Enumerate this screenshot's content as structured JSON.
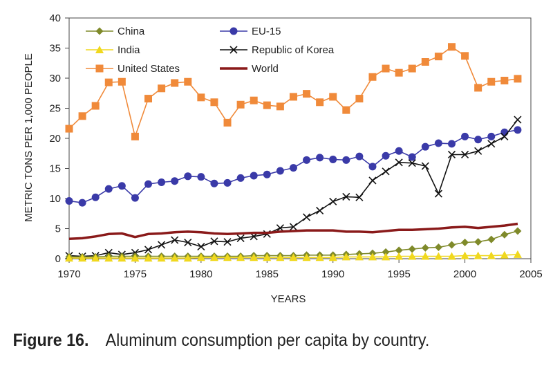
{
  "chart_data": {
    "type": "line",
    "xlabel": "YEARS",
    "ylabel": "METRIC TONS PER 1,000 PEOPLE",
    "xlim": [
      1970,
      2005
    ],
    "ylim": [
      0,
      40
    ],
    "xticks": [
      "1970",
      "1975",
      "1980",
      "1985",
      "1990",
      "1995",
      "2000",
      "2005"
    ],
    "yticks": [
      "0",
      "5",
      "10",
      "15",
      "20",
      "25",
      "30",
      "35",
      "40"
    ],
    "grid": false,
    "legend_position": "top-left",
    "x": [
      1970,
      1971,
      1972,
      1973,
      1974,
      1975,
      1976,
      1977,
      1978,
      1979,
      1980,
      1981,
      1982,
      1983,
      1984,
      1985,
      1986,
      1987,
      1988,
      1989,
      1990,
      1991,
      1992,
      1993,
      1994,
      1995,
      1996,
      1997,
      1998,
      1999,
      2000,
      2001,
      2002,
      2003,
      2004
    ],
    "series": [
      {
        "name": "China",
        "color": "#7f8a2a",
        "marker": "diamond",
        "values": [
          0.3,
          0.3,
          0.3,
          0.4,
          0.4,
          0.4,
          0.4,
          0.4,
          0.4,
          0.4,
          0.4,
          0.4,
          0.4,
          0.4,
          0.5,
          0.5,
          0.5,
          0.5,
          0.6,
          0.6,
          0.6,
          0.7,
          0.8,
          0.9,
          1.1,
          1.4,
          1.6,
          1.8,
          1.9,
          2.3,
          2.7,
          2.8,
          3.2,
          4.0,
          4.6
        ]
      },
      {
        "name": "EU-15",
        "color": "#3a3aa8",
        "marker": "circle",
        "values": [
          9.6,
          9.3,
          10.2,
          11.6,
          12.1,
          10.1,
          12.4,
          12.7,
          12.9,
          13.7,
          13.6,
          12.5,
          12.6,
          13.4,
          13.8,
          14.0,
          14.6,
          15.1,
          16.4,
          16.8,
          16.5,
          16.4,
          17.0,
          15.3,
          17.1,
          17.9,
          16.9,
          18.6,
          19.2,
          19.1,
          20.3,
          19.8,
          20.3,
          21.0,
          21.4
        ]
      },
      {
        "name": "India",
        "color": "#f0d81e",
        "marker": "triangle",
        "values": [
          0.1,
          0.1,
          0.1,
          0.1,
          0.1,
          0.1,
          0.1,
          0.1,
          0.1,
          0.1,
          0.2,
          0.2,
          0.2,
          0.2,
          0.2,
          0.2,
          0.2,
          0.2,
          0.2,
          0.2,
          0.2,
          0.3,
          0.3,
          0.3,
          0.3,
          0.4,
          0.4,
          0.4,
          0.4,
          0.4,
          0.5,
          0.5,
          0.5,
          0.6,
          0.7
        ]
      },
      {
        "name": "Republic of Korea",
        "color": "#111111",
        "marker": "x",
        "values": [
          0.5,
          0.4,
          0.5,
          1.0,
          0.7,
          1.0,
          1.5,
          2.3,
          3.1,
          2.7,
          2.0,
          2.9,
          2.8,
          3.4,
          3.7,
          4.1,
          5.1,
          5.3,
          6.9,
          8.0,
          9.5,
          10.3,
          10.2,
          13.0,
          14.5,
          16.0,
          15.9,
          15.4,
          10.8,
          17.3,
          17.3,
          17.9,
          19.1,
          20.3,
          23.1
        ]
      },
      {
        "name": "United States",
        "color": "#f08a3a",
        "marker": "square",
        "values": [
          21.6,
          23.7,
          25.4,
          29.3,
          29.4,
          20.3,
          26.6,
          28.3,
          29.2,
          29.4,
          26.8,
          26.0,
          22.6,
          25.6,
          26.3,
          25.5,
          25.3,
          26.9,
          27.4,
          26.0,
          26.9,
          24.7,
          26.6,
          30.2,
          31.6,
          30.9,
          31.6,
          32.7,
          33.6,
          35.2,
          33.7,
          28.4,
          29.4,
          29.6,
          29.9
        ]
      },
      {
        "name": "World",
        "color": "#8a1a1a",
        "marker": "none",
        "values": [
          3.3,
          3.4,
          3.7,
          4.1,
          4.2,
          3.6,
          4.1,
          4.2,
          4.4,
          4.5,
          4.4,
          4.2,
          4.1,
          4.2,
          4.3,
          4.3,
          4.5,
          4.6,
          4.7,
          4.7,
          4.7,
          4.5,
          4.5,
          4.4,
          4.6,
          4.8,
          4.8,
          4.9,
          5.0,
          5.2,
          5.3,
          5.1,
          5.3,
          5.5,
          5.8
        ]
      }
    ]
  },
  "caption": {
    "label": "Figure 16.",
    "text": "Aluminum consumption per capita by country."
  }
}
